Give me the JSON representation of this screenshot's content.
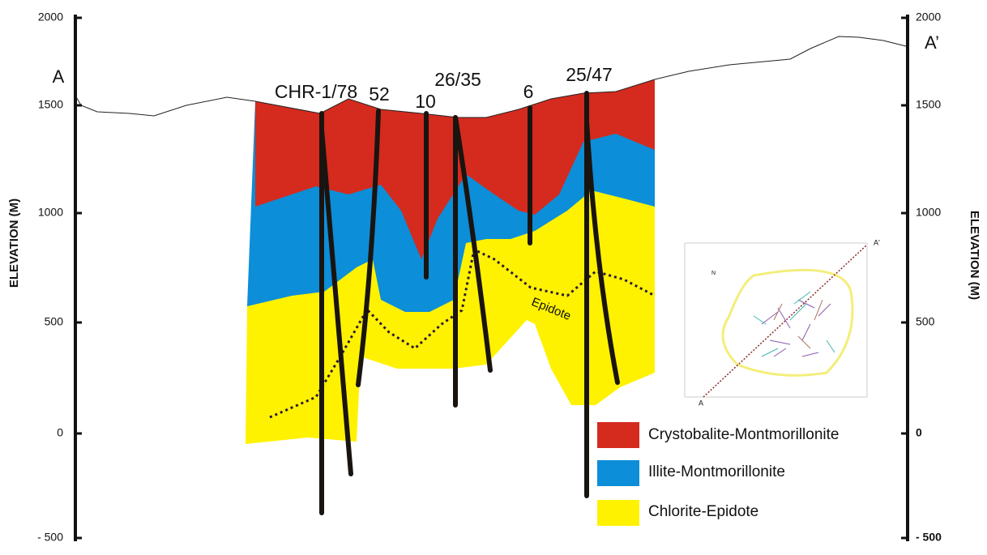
{
  "axes": {
    "left": {
      "title": "ELEVATION (M)",
      "ticks": [
        "2000",
        "1500",
        "1000",
        "500",
        "0",
        "- 500"
      ]
    },
    "right": {
      "title": "ELEVATION (M)",
      "ticks": [
        "2000",
        "1500",
        "1000",
        "500",
        "0",
        "- 500"
      ]
    }
  },
  "section": {
    "start": "A",
    "end": "A’"
  },
  "wells": [
    "CHR-1/78",
    "52",
    "10",
    "26/35",
    "6",
    "25/47"
  ],
  "annotation": "Epidote",
  "legend": [
    "Crystobalite-Montmorillonite",
    "Illite-Montmorillonite",
    "Chlorite-Epidote"
  ],
  "inset": {
    "labels": [
      "A'",
      "A"
    ],
    "north": "N"
  }
}
